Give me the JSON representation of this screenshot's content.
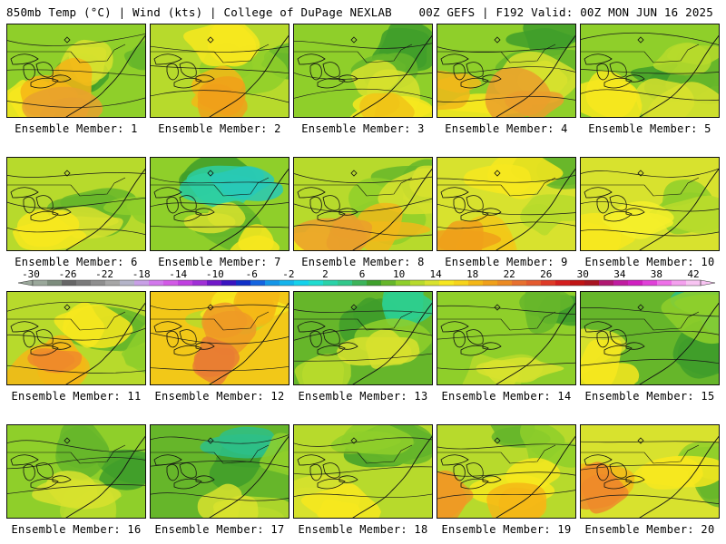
{
  "header": {
    "left": "850mb Temp (°C) | Wind (kts) | College of DuPage NEXLAB",
    "right": "00Z GEFS | F192 Valid: 00Z MON JUN 16 2025"
  },
  "member_label_prefix": "Ensemble Member:",
  "members": [
    {
      "id": 1,
      "label": "Ensemble Member: 1",
      "base": "#8fcf2a",
      "shades": [
        "#3f9e2a",
        "#66b62a",
        "#d8e22e",
        "#f7e71f",
        "#f6b516",
        "#e8a12e"
      ],
      "scheme": "warm-south"
    },
    {
      "id": 2,
      "label": "Ensemble Member: 2",
      "base": "#b7da2c",
      "shades": [
        "#66b62a",
        "#8fcf2a",
        "#f7e71f",
        "#f4b716",
        "#f0a01a"
      ],
      "scheme": "warm-south"
    },
    {
      "id": 3,
      "label": "Ensemble Member: 3",
      "base": "#8fcf2a",
      "shades": [
        "#3f9e2a",
        "#66b62a",
        "#d8e22e",
        "#f7e71f",
        "#f0c418"
      ],
      "scheme": "warm-south"
    },
    {
      "id": 4,
      "label": "Ensemble Member: 4",
      "base": "#8fcf2a",
      "shades": [
        "#3f9e2a",
        "#66b62a",
        "#d8e22e",
        "#f7e71f",
        "#f0b81a",
        "#ea9f2c"
      ],
      "scheme": "warm-south"
    },
    {
      "id": 5,
      "label": "Ensemble Member: 5",
      "base": "#8fcf2a",
      "shades": [
        "#3f9e2a",
        "#66b62a",
        "#b7da2c",
        "#d8e22e",
        "#f7e71f"
      ],
      "scheme": "warm-south"
    },
    {
      "id": 6,
      "label": "Ensemble Member: 6",
      "base": "#b7da2c",
      "shades": [
        "#66b62a",
        "#8fcf2a",
        "#d8e22e",
        "#f7e71f"
      ],
      "scheme": "warm-south"
    },
    {
      "id": 7,
      "label": "Ensemble Member: 7",
      "base": "#8fcf2a",
      "shades": [
        "#3f9e2a",
        "#2dcfa3",
        "#28c9b7",
        "#66b62a",
        "#d8e22e",
        "#f7e71f"
      ],
      "scheme": "cold-north"
    },
    {
      "id": 8,
      "label": "Ensemble Member: 8",
      "base": "#b7da2c",
      "shades": [
        "#66b62a",
        "#8fcf2a",
        "#d8e22e",
        "#f7e71f",
        "#f0b81a",
        "#ea9f2c"
      ],
      "scheme": "warm-south"
    },
    {
      "id": 9,
      "label": "Ensemble Member: 9",
      "base": "#d8e22e",
      "shades": [
        "#66b62a",
        "#b7da2c",
        "#f7e71f",
        "#f2c818",
        "#f0a01a"
      ],
      "scheme": "warm-south"
    },
    {
      "id": 10,
      "label": "Ensemble Member: 10",
      "base": "#d8e22e",
      "shades": [
        "#8fcf2a",
        "#b7da2c",
        "#f7e71f",
        "#f5ef2a"
      ],
      "scheme": "warm-west"
    },
    {
      "id": 11,
      "label": "Ensemble Member: 11",
      "base": "#b7da2c",
      "shades": [
        "#66b62a",
        "#8fcf2a",
        "#f7e71f",
        "#f4b716",
        "#ee8a2a"
      ],
      "scheme": "warm-south"
    },
    {
      "id": 12,
      "label": "Ensemble Member: 12",
      "base": "#f2c818",
      "shades": [
        "#b7da2c",
        "#f7e71f",
        "#f4b716",
        "#ee9a24",
        "#e97d33"
      ],
      "scheme": "hot"
    },
    {
      "id": 13,
      "label": "Ensemble Member: 13",
      "base": "#66b62a",
      "shades": [
        "#3f9e2a",
        "#2dcf8e",
        "#8fcf2a",
        "#b7da2c",
        "#d8e22e"
      ],
      "scheme": "warm-south"
    },
    {
      "id": 14,
      "label": "Ensemble Member: 14",
      "base": "#8fcf2a",
      "shades": [
        "#3f9e2a",
        "#66b62a",
        "#b7da2c",
        "#d8e22e"
      ],
      "scheme": "warm-south"
    },
    {
      "id": 15,
      "label": "Ensemble Member: 15",
      "base": "#66b62a",
      "shades": [
        "#3f9e2a",
        "#2dbf88",
        "#8fcf2a",
        "#d8e22e",
        "#f7e71f"
      ],
      "scheme": "warm-west"
    },
    {
      "id": 16,
      "label": "Ensemble Member: 16",
      "base": "#8fcf2a",
      "shades": [
        "#3f9e2a",
        "#66b62a",
        "#b7da2c",
        "#d8e22e"
      ],
      "scheme": "warm-south"
    },
    {
      "id": 17,
      "label": "Ensemble Member: 17",
      "base": "#66b62a",
      "shades": [
        "#3f9e2a",
        "#2dbf88",
        "#8fcf2a",
        "#b7da2c",
        "#d8e22e"
      ],
      "scheme": "warm-south"
    },
    {
      "id": 18,
      "label": "Ensemble Member: 18",
      "base": "#b7da2c",
      "shades": [
        "#3f9e2a",
        "#66b62a",
        "#8fcf2a",
        "#d8e22e",
        "#f7e71f"
      ],
      "scheme": "warm-west"
    },
    {
      "id": 19,
      "label": "Ensemble Member: 19",
      "base": "#b7da2c",
      "shades": [
        "#66b62a",
        "#8fcf2a",
        "#f7e71f",
        "#f4b716",
        "#ee9a24"
      ],
      "scheme": "warm-south"
    },
    {
      "id": 20,
      "label": "Ensemble Member: 20",
      "base": "#d8e22e",
      "shades": [
        "#66b62a",
        "#8fcf2a",
        "#f7e71f",
        "#f4b716",
        "#ee8a2a"
      ],
      "scheme": "warm-west"
    }
  ],
  "colorbar": {
    "ticks": [
      "-30",
      "-26",
      "-22",
      "-18",
      "-14",
      "-10",
      "-6",
      "-2",
      "2",
      "6",
      "10",
      "14",
      "18",
      "22",
      "26",
      "30",
      "34",
      "38",
      "42"
    ],
    "colors": [
      "#9aa89a",
      "#7d8d7d",
      "#666666",
      "#7a7a7a",
      "#8e8e8e",
      "#a6a6a6",
      "#b4b4c8",
      "#c8a0e6",
      "#d278ec",
      "#d25ae6",
      "#c040e0",
      "#a030d6",
      "#7018c8",
      "#3a14c0",
      "#1030c8",
      "#1464e0",
      "#1496e8",
      "#14b4ec",
      "#14d2ec",
      "#20dcd0",
      "#2ad2a8",
      "#32c88a",
      "#3cb45a",
      "#3fa02c",
      "#66b62a",
      "#8fcf2a",
      "#b7da2c",
      "#d8e22e",
      "#f7e71f",
      "#f7d41a",
      "#f4b716",
      "#f0a01a",
      "#ec8a22",
      "#e8702e",
      "#e45a2e",
      "#de3a26",
      "#d41e1e",
      "#c01414",
      "#a81420",
      "#b01870",
      "#c01ca0",
      "#d020c0",
      "#e040d8",
      "#ee70e8",
      "#f4a0ee",
      "#f8c4f2"
    ]
  }
}
